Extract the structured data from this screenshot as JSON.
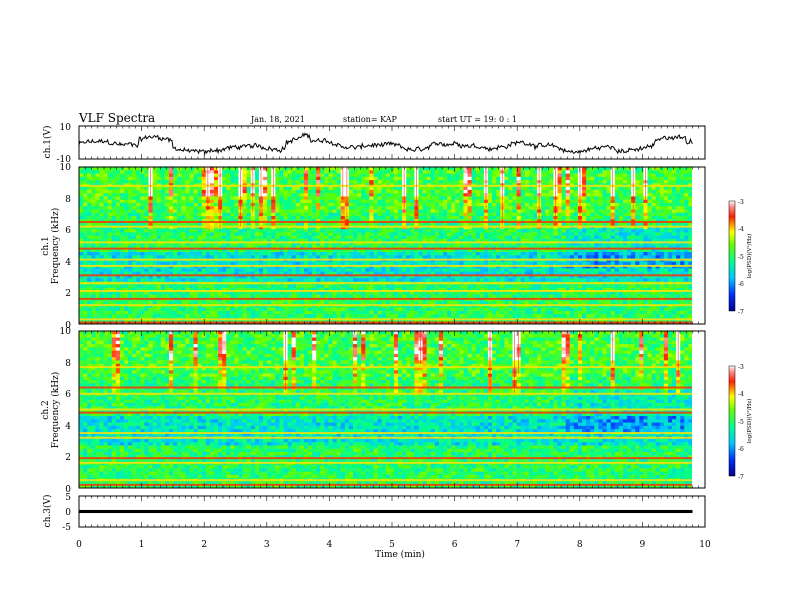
{
  "header": {
    "title": "VLF Spectra",
    "date": "Jan. 18, 2021",
    "station": "station= KAP",
    "start": "start UT =   19: 0  : 1"
  },
  "chart_data": [
    {
      "type": "line",
      "name": "ch1-waveform",
      "ylabel": "ch.1(V)",
      "ylim": [
        -10,
        10
      ],
      "yticks": [
        "10",
        "-10"
      ],
      "xlim": [
        0,
        10
      ],
      "x_end": 9.8,
      "series_color": "#000000"
    },
    {
      "type": "heatmap",
      "name": "ch1-spectrogram",
      "ylabel": "Frequency (kHz)",
      "ylabel_ch": "ch.1",
      "ylim": [
        0,
        10
      ],
      "yticks": [
        "0",
        "2",
        "4",
        "6",
        "8",
        "10"
      ],
      "xlim": [
        0,
        10
      ],
      "x_end": 9.8,
      "bands_khz": [
        0.1,
        0.3,
        1.2,
        1.6,
        2.1,
        2.6,
        3.1,
        3.7,
        4.1,
        4.8,
        5.2,
        6.2,
        6.5,
        8.8
      ],
      "event_min": 7.8,
      "colorbar": {
        "label": "log(PSD)(V²/Hz)",
        "range": [
          -7,
          -3
        ],
        "ticks": [
          "-3",
          "-4",
          "-5",
          "-6",
          "-7"
        ]
      }
    },
    {
      "type": "heatmap",
      "name": "ch2-spectrogram",
      "ylabel": "Frequency (kHz)",
      "ylabel_ch": "ch.2",
      "ylim": [
        0,
        10
      ],
      "yticks": [
        "0",
        "2",
        "4",
        "6",
        "8",
        "10"
      ],
      "xlim": [
        0,
        10
      ],
      "x_end": 9.8,
      "bands_khz": [
        0.2,
        0.5,
        1.6,
        1.9,
        3.2,
        3.5,
        4.8,
        5.0,
        6.0,
        6.4,
        7.7
      ],
      "event_min": 7.8,
      "colorbar": {
        "label": "log(PSD)(V²/Hz)",
        "range": [
          -7,
          -3
        ],
        "ticks": [
          "-3",
          "-4",
          "-5",
          "-6",
          "-7"
        ]
      }
    },
    {
      "type": "line",
      "name": "ch3-waveform",
      "ylabel": "ch.3(V)",
      "ylim": [
        -5,
        5
      ],
      "yticks": [
        "5",
        "0",
        "-5"
      ],
      "xlim": [
        0,
        10
      ],
      "x_end": 9.8,
      "series_color": "#000000",
      "xticks": [
        "0",
        "1",
        "2",
        "3",
        "4",
        "5",
        "6",
        "7",
        "8",
        "9",
        "10"
      ],
      "xlabel": "Time (min)"
    }
  ]
}
